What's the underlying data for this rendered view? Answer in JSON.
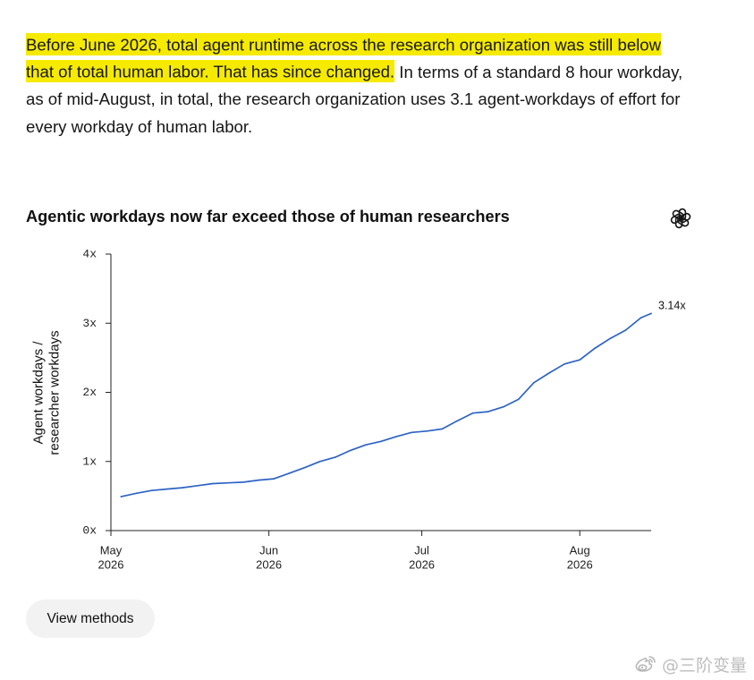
{
  "intro": {
    "line1_highlight": "Before June 2026, total agent runtime across the research organization was still below",
    "line2_highlight": "that of total human labor. That has since changed.",
    "line2_rest": " In terms of a standard 8 hour workday,",
    "line3": "as of mid-August, in total, the research organization uses 3.1 agent-workdays of effort for",
    "line4": "every workday of human labor.",
    "highlight_color": "#f5ea00"
  },
  "chart_card": {
    "logo_icon": "openai-logo-icon"
  },
  "chart_data": {
    "type": "line",
    "title": "Agentic workdays now far exceed those of human researchers",
    "ylabel": [
      "Agent workdays /",
      "researcher workdays"
    ],
    "ylim": [
      0,
      4
    ],
    "yticks": [
      {
        "value": 4,
        "label": "4x"
      },
      {
        "value": 3,
        "label": "3x"
      },
      {
        "value": 2,
        "label": "2x"
      },
      {
        "value": 1,
        "label": "1x"
      },
      {
        "value": 0,
        "label": "0x"
      }
    ],
    "xlim": [
      "2026-05-01",
      "2026-08-15"
    ],
    "xticks": [
      {
        "date": "2026-05-01",
        "month": "May",
        "year": "2026"
      },
      {
        "date": "2026-06-01",
        "month": "Jun",
        "year": "2026"
      },
      {
        "date": "2026-07-01",
        "month": "Jul",
        "year": "2026"
      },
      {
        "date": "2026-08-01",
        "month": "Aug",
        "year": "2026"
      }
    ],
    "grid": false,
    "legend": "none",
    "series": [
      {
        "color": "#2d63c4",
        "points": [
          {
            "x": "2026-05-03",
            "y": 0.49
          },
          {
            "x": "2026-05-06",
            "y": 0.54
          },
          {
            "x": "2026-05-09",
            "y": 0.58
          },
          {
            "x": "2026-05-12",
            "y": 0.6
          },
          {
            "x": "2026-05-15",
            "y": 0.62
          },
          {
            "x": "2026-05-18",
            "y": 0.65
          },
          {
            "x": "2026-05-21",
            "y": 0.68
          },
          {
            "x": "2026-05-24",
            "y": 0.69
          },
          {
            "x": "2026-05-27",
            "y": 0.7
          },
          {
            "x": "2026-05-30",
            "y": 0.73
          },
          {
            "x": "2026-06-02",
            "y": 0.75
          },
          {
            "x": "2026-06-05",
            "y": 0.83
          },
          {
            "x": "2026-06-08",
            "y": 0.91
          },
          {
            "x": "2026-06-11",
            "y": 1.0
          },
          {
            "x": "2026-06-14",
            "y": 1.06
          },
          {
            "x": "2026-06-17",
            "y": 1.16
          },
          {
            "x": "2026-06-20",
            "y": 1.24
          },
          {
            "x": "2026-06-23",
            "y": 1.29
          },
          {
            "x": "2026-06-26",
            "y": 1.36
          },
          {
            "x": "2026-06-29",
            "y": 1.42
          },
          {
            "x": "2026-07-02",
            "y": 1.44
          },
          {
            "x": "2026-07-05",
            "y": 1.47
          },
          {
            "x": "2026-07-08",
            "y": 1.59
          },
          {
            "x": "2026-07-11",
            "y": 1.7
          },
          {
            "x": "2026-07-14",
            "y": 1.72
          },
          {
            "x": "2026-07-17",
            "y": 1.79
          },
          {
            "x": "2026-07-20",
            "y": 1.9
          },
          {
            "x": "2026-07-23",
            "y": 2.14
          },
          {
            "x": "2026-07-26",
            "y": 2.28
          },
          {
            "x": "2026-07-29",
            "y": 2.41
          },
          {
            "x": "2026-08-01",
            "y": 2.47
          },
          {
            "x": "2026-08-04",
            "y": 2.64
          },
          {
            "x": "2026-08-07",
            "y": 2.78
          },
          {
            "x": "2026-08-10",
            "y": 2.9
          },
          {
            "x": "2026-08-13",
            "y": 3.08
          },
          {
            "x": "2026-08-15",
            "y": 3.14
          }
        ]
      }
    ],
    "annotations": [
      {
        "x": "2026-08-15",
        "y": 3.14,
        "text": "3.14x"
      }
    ]
  },
  "actions": {
    "view_methods_label": "View methods"
  },
  "watermark": {
    "icon": "weibo-icon",
    "text": "@三阶变量"
  }
}
